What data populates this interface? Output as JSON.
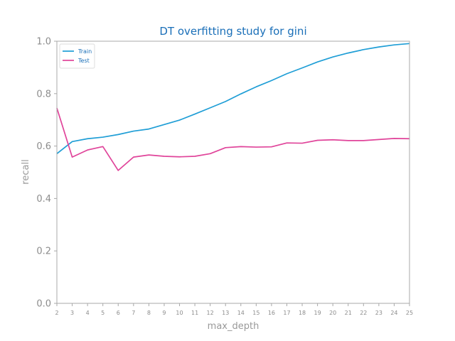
{
  "chart_data": {
    "type": "line",
    "title": "DT overfitting study for gini",
    "xlabel": "max_depth",
    "ylabel": "recall",
    "x": [
      2,
      3,
      4,
      5,
      6,
      7,
      8,
      9,
      10,
      11,
      12,
      13,
      14,
      15,
      16,
      17,
      18,
      19,
      20,
      21,
      22,
      23,
      24,
      25
    ],
    "xlim": [
      2,
      25
    ],
    "ylim": [
      0.0,
      1.0
    ],
    "yticks": [
      "0.0",
      "0.2",
      "0.4",
      "0.6",
      "0.8",
      "1.0"
    ],
    "xticks": [
      "2",
      "3",
      "4",
      "5",
      "6",
      "7",
      "8",
      "9",
      "10",
      "11",
      "12",
      "13",
      "14",
      "15",
      "16",
      "17",
      "18",
      "19",
      "20",
      "21",
      "22",
      "23",
      "24",
      "25"
    ],
    "grid": false,
    "legend_position": "top-left",
    "series": [
      {
        "name": "Train",
        "color": "#1f9ed6",
        "values": [
          0.571,
          0.617,
          0.628,
          0.634,
          0.644,
          0.657,
          0.665,
          0.682,
          0.699,
          0.722,
          0.746,
          0.77,
          0.799,
          0.826,
          0.85,
          0.876,
          0.898,
          0.921,
          0.94,
          0.955,
          0.968,
          0.978,
          0.986,
          0.991
        ]
      },
      {
        "name": "Test",
        "color": "#e0449a",
        "values": [
          0.745,
          0.558,
          0.585,
          0.598,
          0.507,
          0.558,
          0.566,
          0.561,
          0.559,
          0.561,
          0.571,
          0.594,
          0.598,
          0.596,
          0.597,
          0.612,
          0.611,
          0.622,
          0.624,
          0.621,
          0.621,
          0.625,
          0.629,
          0.628
        ]
      }
    ]
  },
  "colors": {
    "title": "#1a6fb8",
    "axis": "#a8a8a8",
    "tick_text": "#8c8c8c",
    "label_text": "#999999"
  }
}
